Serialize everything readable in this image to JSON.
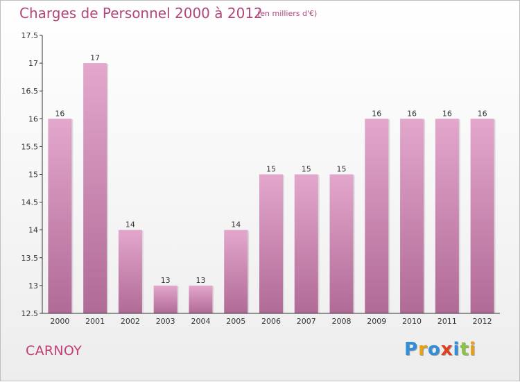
{
  "page": {
    "title": "Charges de Personnel 2000 à 2012",
    "subtitle": "(en milliers d'€)",
    "commune": "CARNOY",
    "brand": "Proxiti",
    "brand_colors": [
      "#2f8fd8",
      "#e8a21a",
      "#2f8fd8",
      "#e04020",
      "#2f8fd8",
      "#8bc34a",
      "#e8a21a"
    ]
  },
  "colors": {
    "title": "#b0467a",
    "bar_top": "#e3a7cc",
    "bar_bottom": "#b06a96",
    "axis": "#333333"
  },
  "chart_data": {
    "type": "bar",
    "title": "Charges de Personnel 2000 à 2012",
    "subtitle": "(en milliers d'€)",
    "xlabel": "",
    "ylabel": "",
    "categories": [
      "2000",
      "2001",
      "2002",
      "2003",
      "2004",
      "2005",
      "2006",
      "2007",
      "2008",
      "2009",
      "2010",
      "2011",
      "2012"
    ],
    "values": [
      16,
      17,
      14,
      13,
      13,
      14,
      15,
      15,
      15,
      16,
      16,
      16,
      16
    ],
    "data_labels": [
      "16",
      "17",
      "14",
      "13",
      "13",
      "14",
      "15",
      "15",
      "15",
      "16",
      "16",
      "16",
      "16"
    ],
    "ylim": [
      12.5,
      17.5
    ],
    "yticks": [
      12.5,
      13,
      13.5,
      14,
      14.5,
      15,
      15.5,
      16,
      16.5,
      17,
      17.5
    ],
    "ytick_labels": [
      "12.5",
      "13",
      "13.5",
      "14",
      "14.5",
      "15",
      "15.5",
      "16",
      "16.5",
      "17",
      "17.5"
    ],
    "grid": false,
    "legend": "none"
  }
}
